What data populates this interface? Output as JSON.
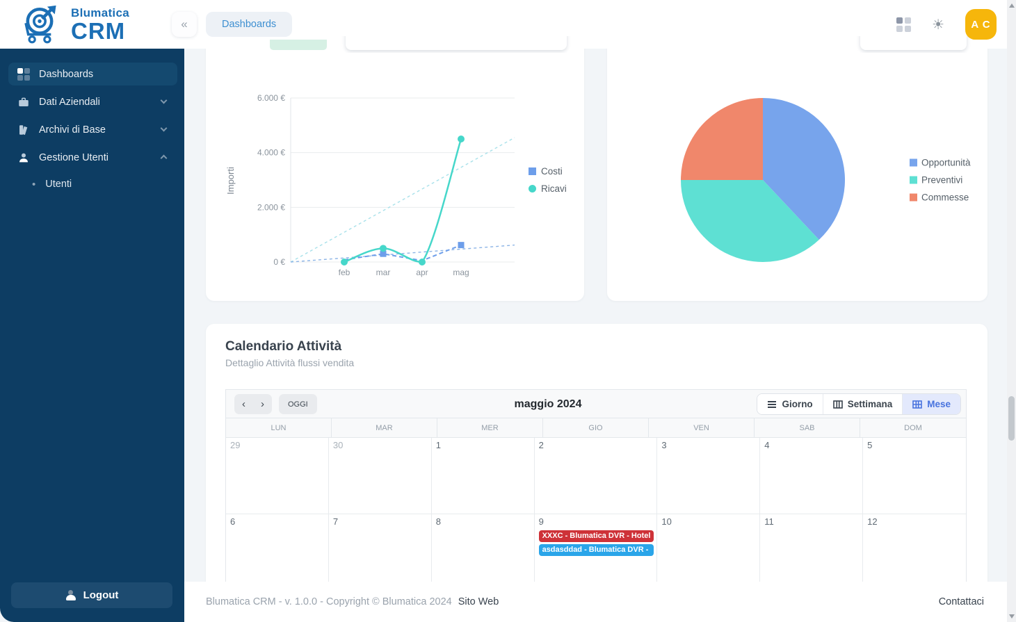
{
  "header": {
    "brand_top": "Blumatica",
    "brand_bottom": "CRM",
    "collapse_icon": "«",
    "tab": "Dashboards",
    "avatar": "A C"
  },
  "sidebar": {
    "items": [
      {
        "label": "Dashboards",
        "active": true,
        "expandable": false
      },
      {
        "label": "Dati Aziendali",
        "active": false,
        "expandable": true,
        "expanded": false
      },
      {
        "label": "Archivi di Base",
        "active": false,
        "expandable": true,
        "expanded": false
      },
      {
        "label": "Gestione Utenti",
        "active": false,
        "expandable": true,
        "expanded": true
      }
    ],
    "sub_item": "Utenti",
    "logout_label": "Logout"
  },
  "chart_data": [
    {
      "type": "line",
      "ylabel": "Importi",
      "categories": [
        "feb",
        "mar",
        "apr",
        "mag"
      ],
      "ylim": [
        0,
        6000
      ],
      "yticks": [
        0,
        2000,
        4000,
        6000
      ],
      "ytick_labels": [
        "0 €",
        "2.000 €",
        "4.000 €",
        "6.000 €"
      ],
      "grid": true,
      "legend_position": "right",
      "series": [
        {
          "name": "Costi",
          "color": "#6d9eea",
          "style": "dashed",
          "marker": "square",
          "values": [
            80,
            300,
            50,
            620
          ],
          "marker_indices": [
            1,
            3
          ]
        },
        {
          "name": "Ricavi",
          "color": "#46d7ca",
          "style": "solid",
          "marker": "circle",
          "values": [
            0,
            500,
            0,
            4500
          ],
          "marker_indices": [
            0,
            1,
            2,
            3
          ]
        }
      ],
      "trendlines": [
        {
          "name": "Ricavi trend",
          "color": "#a8e1ea",
          "from": 0,
          "to": 4550
        },
        {
          "name": "Costi trend",
          "color": "#8cb4e6",
          "from": 0,
          "to": 620
        }
      ]
    },
    {
      "type": "pie",
      "legend_position": "right",
      "slices": [
        {
          "label": "Opportunità",
          "value": 38,
          "color": "#77a4ec"
        },
        {
          "label": "Preventivi",
          "value": 37,
          "color": "#5ee0d3"
        },
        {
          "label": "Commesse",
          "value": 25,
          "color": "#f0876b"
        }
      ]
    }
  ],
  "calendar": {
    "title": "Calendario Attività",
    "subtitle": "Dettaglio Attività flussi vendita",
    "toolbar": {
      "prev": "‹",
      "next": "›",
      "today_label": "OGGI",
      "month_title": "maggio 2024",
      "views": [
        {
          "label": "Giorno",
          "active": false
        },
        {
          "label": "Settimana",
          "active": false
        },
        {
          "label": "Mese",
          "active": true
        }
      ]
    },
    "weekdays": [
      "LUN",
      "MAR",
      "MER",
      "GIO",
      "VEN",
      "SAB",
      "DOM"
    ],
    "weeks": [
      [
        {
          "label": "29",
          "other_month": true
        },
        {
          "label": "30",
          "other_month": true
        },
        {
          "label": "1"
        },
        {
          "label": "2"
        },
        {
          "label": "3"
        },
        {
          "label": "4"
        },
        {
          "label": "5"
        }
      ],
      [
        {
          "label": "6"
        },
        {
          "label": "7"
        },
        {
          "label": "8"
        },
        {
          "label": "9",
          "events": [
            {
              "title": "XXXC - Blumatica DVR - Hotel",
              "color": "#ce3238"
            },
            {
              "title": "asdasddad - Blumatica DVR -",
              "color": "#2aa5e9"
            }
          ]
        },
        {
          "label": "10"
        },
        {
          "label": "11"
        },
        {
          "label": "12"
        }
      ]
    ]
  },
  "footer": {
    "copyright": "Blumatica CRM - v. 1.0.0 - Copyright © Blumatica 2024",
    "site_link": "Sito Web",
    "contact_link": "Contattaci"
  },
  "colors": {
    "brand_blue": "#1c6fb5",
    "sidebar_bg": "#0d3d63",
    "avatar_bg": "#f6b60b",
    "event_red": "#ce3238",
    "event_blue": "#2aa5e9",
    "active_view_bg": "#e3e9fc",
    "active_view_text": "#4873de"
  }
}
